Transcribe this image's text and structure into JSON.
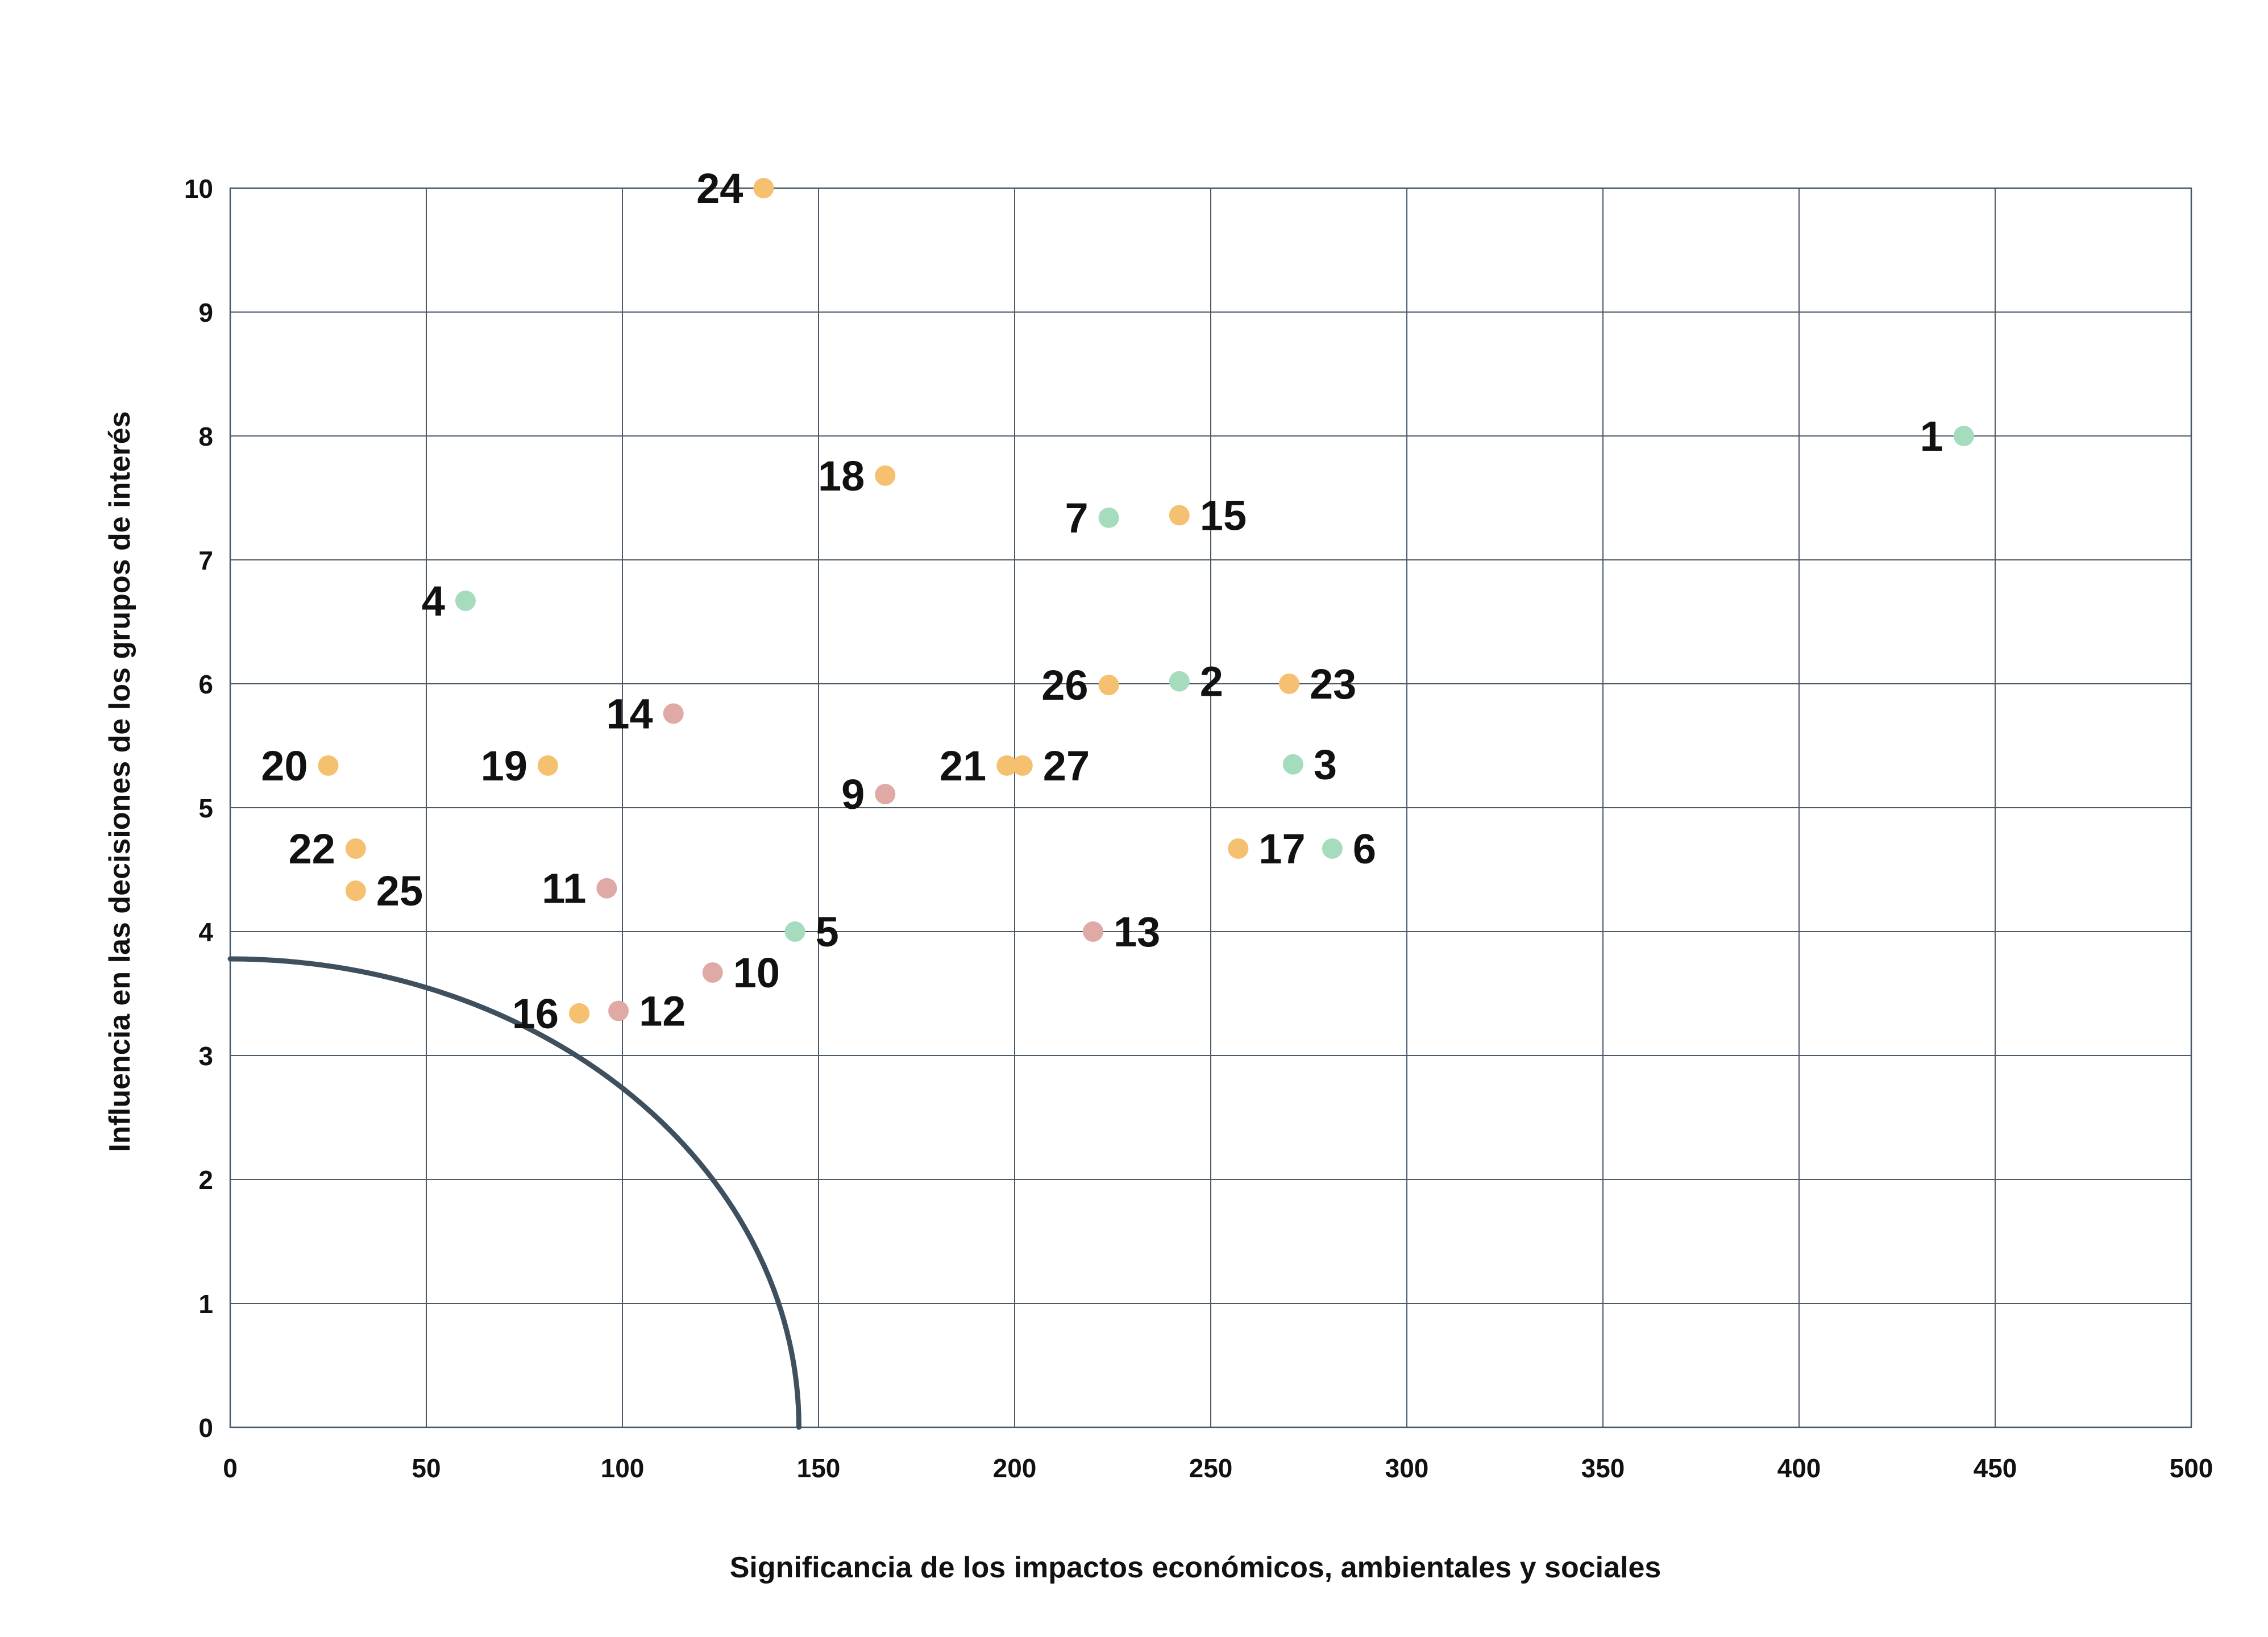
{
  "chart_data": {
    "type": "scatter",
    "title": "",
    "xlabel": "Significancia de los impactos económicos, ambientales y sociales",
    "ylabel": "Influencia en las decisiones de los grupos de interés",
    "xlim": [
      0,
      500
    ],
    "ylim": [
      0,
      10
    ],
    "x_ticks": [
      0,
      50,
      100,
      150,
      200,
      250,
      300,
      350,
      400,
      450,
      500
    ],
    "y_ticks": [
      0,
      1,
      2,
      3,
      4,
      5,
      6,
      7,
      8,
      9,
      10
    ],
    "x_tick_labels": [
      "0",
      "50",
      "100",
      "150",
      "200",
      "250",
      "300",
      "350",
      "400",
      "450",
      "500"
    ],
    "y_tick_labels": [
      "0",
      "1",
      "2",
      "3",
      "4",
      "5",
      "6",
      "7",
      "8",
      "9",
      "10"
    ],
    "grid": true,
    "legend": "none",
    "colors": {
      "green": "#a6dcbe",
      "orange": "#f5c06f",
      "pink": "#dfaaa6",
      "curve": "#3e4f5e",
      "grid": "#4a5a69"
    },
    "threshold_curve": {
      "shape": "quarter-ellipse",
      "x_intercept": 145,
      "y_intercept": 3.78
    },
    "points": [
      {
        "label": "1",
        "x": 442,
        "y": 8.0,
        "color": "green",
        "label_side": "left"
      },
      {
        "label": "2",
        "x": 242,
        "y": 6.02,
        "color": "green",
        "label_side": "right"
      },
      {
        "label": "3",
        "x": 271,
        "y": 5.35,
        "color": "green",
        "label_side": "right"
      },
      {
        "label": "4",
        "x": 60,
        "y": 6.67,
        "color": "green",
        "label_side": "left"
      },
      {
        "label": "5",
        "x": 144,
        "y": 4.0,
        "color": "green",
        "label_side": "right"
      },
      {
        "label": "6",
        "x": 281,
        "y": 4.67,
        "color": "green",
        "label_side": "right"
      },
      {
        "label": "7",
        "x": 224,
        "y": 7.34,
        "color": "green",
        "label_side": "left"
      },
      {
        "label": "9",
        "x": 167,
        "y": 5.11,
        "color": "pink",
        "label_side": "left"
      },
      {
        "label": "10",
        "x": 123,
        "y": 3.67,
        "color": "pink",
        "label_side": "right"
      },
      {
        "label": "11",
        "x": 96,
        "y": 4.35,
        "color": "pink",
        "label_side": "left"
      },
      {
        "label": "12",
        "x": 99,
        "y": 3.36,
        "color": "pink",
        "label_side": "right"
      },
      {
        "label": "13",
        "x": 220,
        "y": 4.0,
        "color": "pink",
        "label_side": "right"
      },
      {
        "label": "14",
        "x": 113,
        "y": 5.76,
        "color": "pink",
        "label_side": "left"
      },
      {
        "label": "15",
        "x": 242,
        "y": 7.36,
        "color": "orange",
        "label_side": "right"
      },
      {
        "label": "16",
        "x": 89,
        "y": 3.34,
        "color": "orange",
        "label_side": "left"
      },
      {
        "label": "17",
        "x": 257,
        "y": 4.67,
        "color": "orange",
        "label_side": "right"
      },
      {
        "label": "18",
        "x": 167,
        "y": 7.68,
        "color": "orange",
        "label_side": "left"
      },
      {
        "label": "19",
        "x": 81,
        "y": 5.34,
        "color": "orange",
        "label_side": "left"
      },
      {
        "label": "20",
        "x": 25,
        "y": 5.34,
        "color": "orange",
        "label_side": "left"
      },
      {
        "label": "21",
        "x": 198,
        "y": 5.34,
        "color": "orange",
        "label_side": "left"
      },
      {
        "label": "22",
        "x": 32,
        "y": 4.67,
        "color": "orange",
        "label_side": "left"
      },
      {
        "label": "23",
        "x": 270,
        "y": 6.0,
        "color": "orange",
        "label_side": "right"
      },
      {
        "label": "24",
        "x": 136,
        "y": 10.0,
        "color": "orange",
        "label_side": "left"
      },
      {
        "label": "25",
        "x": 32,
        "y": 4.33,
        "color": "orange",
        "label_side": "right"
      },
      {
        "label": "26",
        "x": 224,
        "y": 5.99,
        "color": "orange",
        "label_side": "left"
      },
      {
        "label": "27",
        "x": 202,
        "y": 5.34,
        "color": "orange",
        "label_side": "right"
      }
    ]
  }
}
